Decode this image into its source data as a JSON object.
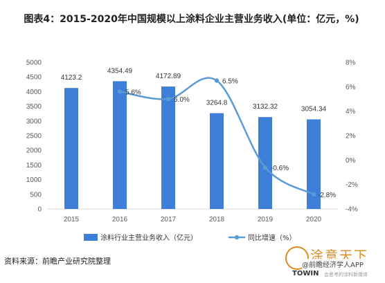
{
  "title": "图表4：2015-2020年中国规模以上涂料企业主营业务收入(单位：亿元，%)",
  "source": "资料来源：前瞻产业研究院整理",
  "watermark": {
    "brand": "涂意天下",
    "app": "@前瞻经济学人APP",
    "org": "TOWIN",
    "org_sub": "会思考的涂料新媒体"
  },
  "colors": {
    "bar": "#3d7ed8",
    "line": "#5b9bd5",
    "axis": "#d9d9d9",
    "text": "#595959"
  },
  "chart_data": {
    "type": "bar+line",
    "categories": [
      "2015",
      "2016",
      "2017",
      "2018",
      "2019",
      "2020"
    ],
    "series": [
      {
        "name": "涂料行业主营业务收入（亿元）",
        "type": "bar",
        "axis": "left",
        "values": [
          4123.2,
          4354.49,
          4172.89,
          3264.8,
          3132.32,
          3054.34
        ],
        "labels": [
          "4123.2",
          "4354.49",
          "4172.89",
          "3264.8",
          "3132.32",
          "3054.34"
        ]
      },
      {
        "name": "同比增速（%）",
        "type": "line",
        "axis": "right",
        "values": [
          null,
          5.6,
          5.0,
          6.5,
          -0.6,
          -2.8
        ],
        "labels": [
          "",
          "5.6%",
          "5.0%",
          "6.5%",
          "-0.6%",
          "-2.8%"
        ]
      }
    ],
    "y_left": {
      "min": 0,
      "max": 5000,
      "ticks": [
        "0",
        "500",
        "1000",
        "1500",
        "2000",
        "2500",
        "3000",
        "3500",
        "4000",
        "4500",
        "5000"
      ]
    },
    "y_right": {
      "min": -4,
      "max": 8,
      "ticks": [
        "-4%",
        "-2%",
        "0%",
        "2%",
        "4%",
        "6%",
        "8%"
      ]
    },
    "grid": false,
    "legend_position": "bottom"
  }
}
